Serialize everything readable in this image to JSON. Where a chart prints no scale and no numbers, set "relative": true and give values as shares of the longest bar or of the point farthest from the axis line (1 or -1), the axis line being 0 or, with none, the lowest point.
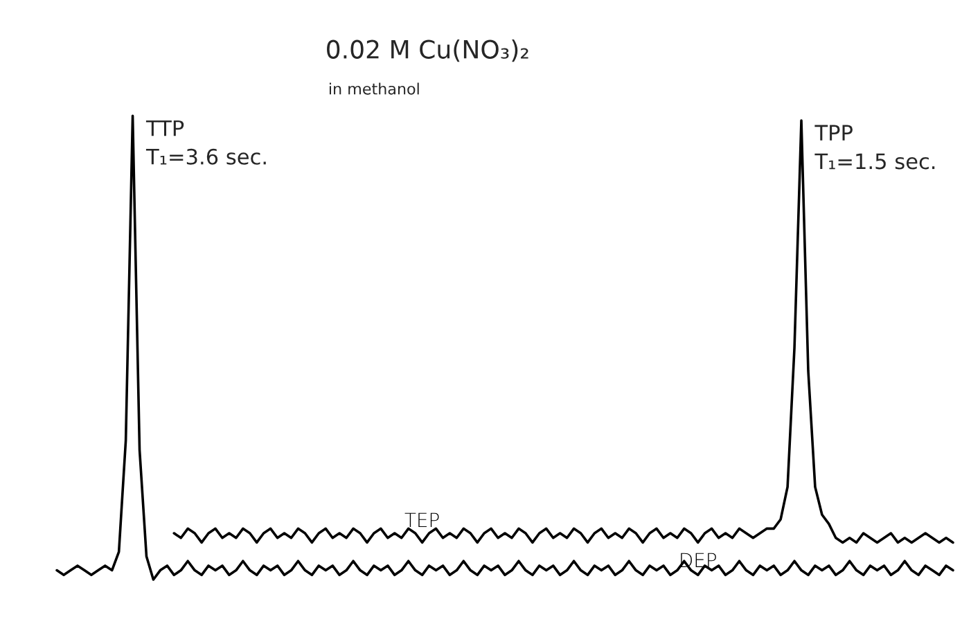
{
  "chart_data": {
    "type": "line",
    "relative": true,
    "title": "0.02 M Cu(NO₃)₂",
    "subtitle": "in methanol",
    "categories": [
      null,
      null,
      null,
      null,
      null,
      null,
      null,
      null,
      null,
      null,
      null,
      null,
      null,
      null,
      null,
      null,
      null,
      null,
      null,
      null,
      null,
      null,
      null,
      null,
      null,
      null,
      null,
      null,
      null,
      null,
      null,
      null,
      null,
      null,
      null,
      null,
      null,
      null,
      null,
      null,
      null,
      null,
      null,
      null,
      null,
      null,
      null,
      null,
      null,
      null,
      null,
      null,
      null,
      null,
      null,
      null,
      null,
      null,
      null,
      null,
      null,
      null,
      null,
      null,
      null,
      null,
      null,
      null,
      null,
      null,
      null,
      null,
      null,
      null,
      null,
      null,
      null,
      null,
      null,
      null,
      null,
      null,
      null,
      null,
      null,
      null,
      null,
      null,
      null,
      null,
      null,
      null,
      null,
      null,
      null,
      null,
      null,
      null,
      null,
      null,
      null,
      null,
      null,
      null,
      null,
      null,
      null,
      null,
      null,
      null,
      null,
      null,
      null,
      null,
      null,
      null,
      null,
      null,
      null,
      null,
      null,
      null,
      null,
      null,
      null,
      null,
      null,
      null,
      null,
      null,
      null
    ],
    "series": [
      {
        "name": "DEP",
        "color": "#000000",
        "values": [
          0.02,
          0.01,
          0.02,
          0.03,
          0.02,
          0.01,
          0.02,
          0.03,
          0.02,
          0.06,
          0.3,
          1.0,
          0.28,
          0.05,
          0.0,
          0.02,
          0.03,
          0.01,
          0.02,
          0.04,
          0.02,
          0.01,
          0.03,
          0.02,
          0.03,
          0.01,
          0.02,
          0.04,
          0.02,
          0.01,
          0.03,
          0.02,
          0.03,
          0.01,
          0.02,
          0.04,
          0.02,
          0.01,
          0.03,
          0.02,
          0.03,
          0.01,
          0.02,
          0.04,
          0.02,
          0.01,
          0.03,
          0.02,
          0.03,
          0.01,
          0.02,
          0.04,
          0.02,
          0.01,
          0.03,
          0.02,
          0.03,
          0.01,
          0.02,
          0.04,
          0.02,
          0.01,
          0.03,
          0.02,
          0.03,
          0.01,
          0.02,
          0.04,
          0.02,
          0.01,
          0.03,
          0.02,
          0.03,
          0.01,
          0.02,
          0.04,
          0.02,
          0.01,
          0.03,
          0.02,
          0.03,
          0.01,
          0.02,
          0.04,
          0.02,
          0.01,
          0.03,
          0.02,
          0.03,
          0.01,
          0.02,
          0.04,
          0.02,
          0.01,
          0.03,
          0.02,
          0.03,
          0.01,
          0.02,
          0.04,
          0.02,
          0.01,
          0.03,
          0.02,
          0.03,
          0.01,
          0.02,
          0.04,
          0.02,
          0.01,
          0.03,
          0.02,
          0.03,
          0.01,
          0.02,
          0.04,
          0.02,
          0.01,
          0.03,
          0.02,
          0.03,
          0.01,
          0.02,
          0.04,
          0.02,
          0.01,
          0.03,
          0.02,
          0.01,
          0.03,
          0.02
        ]
      },
      {
        "name": "TEP",
        "color": "#000000",
        "values": [
          null,
          null,
          null,
          null,
          null,
          null,
          null,
          null,
          null,
          null,
          null,
          null,
          null,
          null,
          null,
          null,
          null,
          0.1,
          0.09,
          0.11,
          0.1,
          0.08,
          0.1,
          0.11,
          0.09,
          0.1,
          0.09,
          0.11,
          0.1,
          0.08,
          0.1,
          0.11,
          0.09,
          0.1,
          0.09,
          0.11,
          0.1,
          0.08,
          0.1,
          0.11,
          0.09,
          0.1,
          0.09,
          0.11,
          0.1,
          0.08,
          0.1,
          0.11,
          0.09,
          0.1,
          0.09,
          0.11,
          0.1,
          0.08,
          0.1,
          0.11,
          0.09,
          0.1,
          0.09,
          0.11,
          0.1,
          0.08,
          0.1,
          0.11,
          0.09,
          0.1,
          0.09,
          0.11,
          0.1,
          0.08,
          0.1,
          0.11,
          0.09,
          0.1,
          0.09,
          0.11,
          0.1,
          0.08,
          0.1,
          0.11,
          0.09,
          0.1,
          0.09,
          0.11,
          0.1,
          0.08,
          0.1,
          0.11,
          0.09,
          0.1,
          0.09,
          0.11,
          0.1,
          0.08,
          0.1,
          0.11,
          0.09,
          0.1,
          0.09,
          0.11,
          0.1,
          0.09,
          0.1,
          0.11,
          0.11,
          0.13,
          0.2,
          0.5,
          0.99,
          0.45,
          0.2,
          0.14,
          0.12,
          0.09,
          0.08,
          0.09,
          0.08,
          0.1,
          0.09,
          0.08,
          0.09,
          0.1,
          0.08,
          0.09,
          0.08,
          0.09,
          0.1,
          0.09,
          0.08,
          0.09,
          0.08
        ]
      }
    ],
    "annotations": [
      "TTP\nT₁=3.6 sec.",
      "TPP\nT₁=1.5 sec."
    ],
    "legend": false,
    "tick_labels": false
  }
}
